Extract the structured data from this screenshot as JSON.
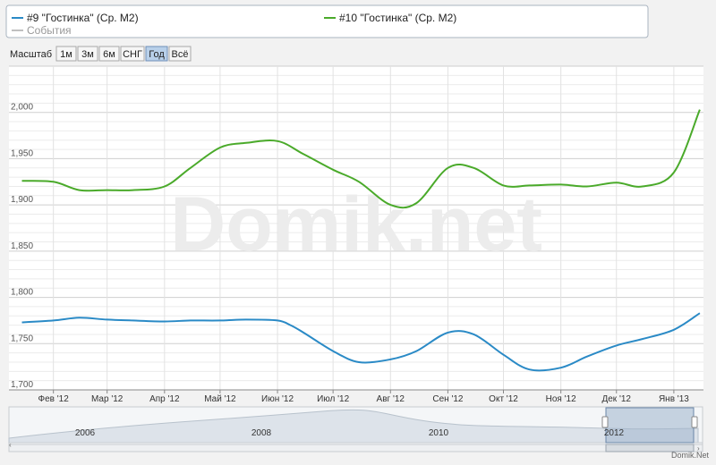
{
  "legend": {
    "items": [
      {
        "label": "#9 \"Гостинка\" (Ср. M2)",
        "color": "#2a8ac6"
      },
      {
        "label": "#10 \"Гостинка\" (Ср. M2)",
        "color": "#4aaa2a"
      },
      {
        "label": "События",
        "color": "#aaaaaa"
      }
    ]
  },
  "zoom": {
    "label": "Масштаб",
    "buttons": [
      "1м",
      "3м",
      "6м",
      "СНГ",
      "Год",
      "Всё"
    ],
    "selected": "Год"
  },
  "watermark": "Domik.net",
  "credit": "Domik.Net",
  "navigator": {
    "years": [
      "2006",
      "2008",
      "2010",
      "2012"
    ]
  },
  "chart_data": {
    "type": "line",
    "title": "",
    "xlabel": "",
    "ylabel": "",
    "x_ticks": [
      "Фев '12",
      "Мар '12",
      "Апр '12",
      "Май '12",
      "Июн '12",
      "Июл '12",
      "Авг '12",
      "Сен '12",
      "Окт '12",
      "Ноя '12",
      "Дек '12",
      "Янв '13"
    ],
    "y_ticks": [
      "1,700",
      "1,750",
      "1,800",
      "1,850",
      "1,900",
      "1,950",
      "2,000"
    ],
    "ylim": [
      1700,
      2050
    ],
    "grid": true,
    "legend_position": "top",
    "series": [
      {
        "name": "#9 \"Гостинка\" (Ср. M2)",
        "color": "#2a8ac6",
        "points": [
          [
            "2012-01-15",
            1773
          ],
          [
            "2012-02-01",
            1775
          ],
          [
            "2012-02-15",
            1778
          ],
          [
            "2012-03-01",
            1776
          ],
          [
            "2012-03-15",
            1775
          ],
          [
            "2012-04-01",
            1774
          ],
          [
            "2012-04-15",
            1775
          ],
          [
            "2012-05-01",
            1775
          ],
          [
            "2012-05-15",
            1776
          ],
          [
            "2012-06-01",
            1775
          ],
          [
            "2012-06-08",
            1770
          ],
          [
            "2012-06-15",
            1762
          ],
          [
            "2012-07-01",
            1742
          ],
          [
            "2012-07-15",
            1730
          ],
          [
            "2012-08-01",
            1733
          ],
          [
            "2012-08-15",
            1742
          ],
          [
            "2012-09-01",
            1762
          ],
          [
            "2012-09-15",
            1760
          ],
          [
            "2012-10-01",
            1738
          ],
          [
            "2012-10-15",
            1722
          ],
          [
            "2012-11-01",
            1724
          ],
          [
            "2012-11-15",
            1736
          ],
          [
            "2012-12-01",
            1748
          ],
          [
            "2012-12-15",
            1755
          ],
          [
            "2013-01-01",
            1765
          ],
          [
            "2013-01-15",
            1783
          ]
        ]
      },
      {
        "name": "#10 \"Гостинка\" (Ср. M2)",
        "color": "#4aaa2a",
        "points": [
          [
            "2012-01-15",
            1926
          ],
          [
            "2012-02-01",
            1925
          ],
          [
            "2012-02-15",
            1916
          ],
          [
            "2012-03-01",
            1916
          ],
          [
            "2012-03-15",
            1916
          ],
          [
            "2012-04-01",
            1920
          ],
          [
            "2012-04-15",
            1940
          ],
          [
            "2012-05-01",
            1962
          ],
          [
            "2012-05-15",
            1967
          ],
          [
            "2012-06-01",
            1969
          ],
          [
            "2012-06-15",
            1955
          ],
          [
            "2012-07-01",
            1938
          ],
          [
            "2012-07-15",
            1925
          ],
          [
            "2012-08-01",
            1900
          ],
          [
            "2012-08-15",
            1902
          ],
          [
            "2012-09-01",
            1940
          ],
          [
            "2012-09-15",
            1940
          ],
          [
            "2012-10-01",
            1921
          ],
          [
            "2012-10-15",
            1921
          ],
          [
            "2012-11-01",
            1922
          ],
          [
            "2012-11-15",
            1920
          ],
          [
            "2012-12-01",
            1924
          ],
          [
            "2012-12-15",
            1920
          ],
          [
            "2013-01-01",
            1935
          ],
          [
            "2013-01-15",
            2003
          ]
        ]
      }
    ]
  }
}
